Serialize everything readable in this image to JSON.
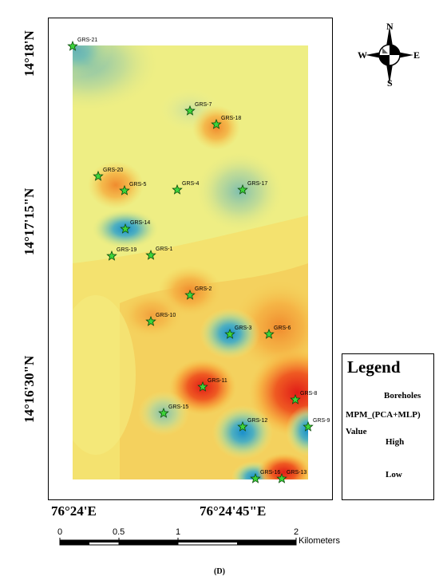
{
  "coords": {
    "lat_top": "14°18'N",
    "lat_mid": "14°17'15\"N",
    "lat_bottom": "14°16'30\"N",
    "lon_left": "76°24'E",
    "lon_right": "76°24'45\"E"
  },
  "compass": {
    "n": "N",
    "s": "S",
    "e": "E",
    "w": "W"
  },
  "boreholes": [
    {
      "id": "GRS-21"
    },
    {
      "id": "GRS-7"
    },
    {
      "id": "GRS-18"
    },
    {
      "id": "GRS-20"
    },
    {
      "id": "GRS-5"
    },
    {
      "id": "GRS-4"
    },
    {
      "id": "GRS-17"
    },
    {
      "id": "GRS-14"
    },
    {
      "id": "GRS-19"
    },
    {
      "id": "GRS-1"
    },
    {
      "id": "GRS-2"
    },
    {
      "id": "GRS-10"
    },
    {
      "id": "GRS-3"
    },
    {
      "id": "GRS-6"
    },
    {
      "id": "GRS-11"
    },
    {
      "id": "GRS-8"
    },
    {
      "id": "GRS-15"
    },
    {
      "id": "GRS-12"
    },
    {
      "id": "GRS-9"
    },
    {
      "id": "GRS-16"
    },
    {
      "id": "GRS-13"
    }
  ],
  "legend": {
    "title": "Legend",
    "symbol_label": "Boreholes",
    "layer_label": "MPM_(PCA+MLP)",
    "value_label": "Value",
    "high_label": "High",
    "low_label": "Low"
  },
  "scalebar": {
    "ticks": [
      "0",
      "0.5",
      "1",
      "2"
    ],
    "unit": "Kilometers"
  },
  "caption": "(D)",
  "colors": {
    "high": "#e8251b",
    "mid": "#f4f06a",
    "low": "#1f93c9"
  }
}
